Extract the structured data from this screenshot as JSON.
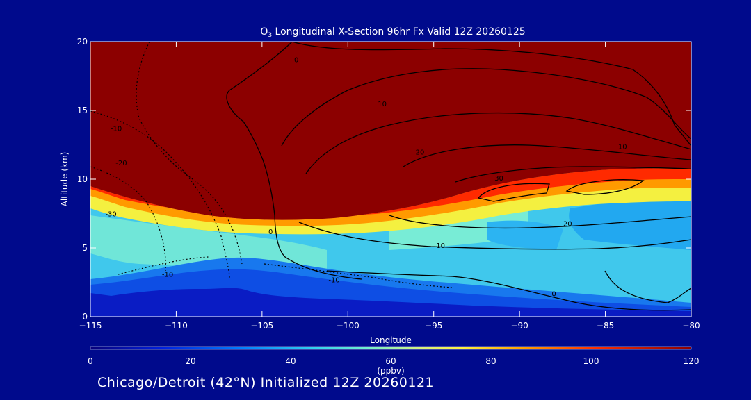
{
  "chart_data": {
    "type": "heatmap",
    "title_species": "O",
    "title_subscript": "3",
    "title": " Longitudinal X-Section 96hr  Fx Valid 12Z 20260125",
    "xlabel": "Longitude",
    "ylabel": "Altitude (km)",
    "xlim": [
      -115,
      -80
    ],
    "ylim": [
      0,
      20
    ],
    "x_ticks": [
      "-115",
      "-110",
      "-105",
      "-100",
      "-95",
      "-90",
      "-85",
      "-80"
    ],
    "y_ticks": [
      "0",
      "5",
      "10",
      "15",
      "20"
    ],
    "colorbar": {
      "range": [
        0,
        120
      ],
      "ticks": [
        "0",
        "20",
        "40",
        "60",
        "80",
        "100",
        "120"
      ],
      "unit": "(ppbv)"
    },
    "contour_labels": [
      {
        "text": "0",
        "x": -104.5,
        "y": 6.0
      },
      {
        "text": "0",
        "x": -103.0,
        "y": 18.5
      },
      {
        "text": "0",
        "x": -88.0,
        "y": 1.5
      },
      {
        "text": "10",
        "x": -98.0,
        "y": 15.3
      },
      {
        "text": "10",
        "x": -84.0,
        "y": 12.2
      },
      {
        "text": "10",
        "x": -94.6,
        "y": 5.0
      },
      {
        "text": "20",
        "x": -95.8,
        "y": 11.8
      },
      {
        "text": "20",
        "x": -87.2,
        "y": 6.6
      },
      {
        "text": "30",
        "x": -91.2,
        "y": 9.9
      },
      {
        "text": "-10",
        "x": -113.5,
        "y": 13.5
      },
      {
        "text": "-20",
        "x": -113.2,
        "y": 11.0
      },
      {
        "text": "-30",
        "x": -113.8,
        "y": 7.3
      },
      {
        "text": "-10",
        "x": -110.5,
        "y": 2.9
      },
      {
        "text": "-10",
        "x": -100.8,
        "y": 2.5
      }
    ],
    "footer": "Chicago/Detroit (42°N) Initialized 12Z 20260121"
  }
}
